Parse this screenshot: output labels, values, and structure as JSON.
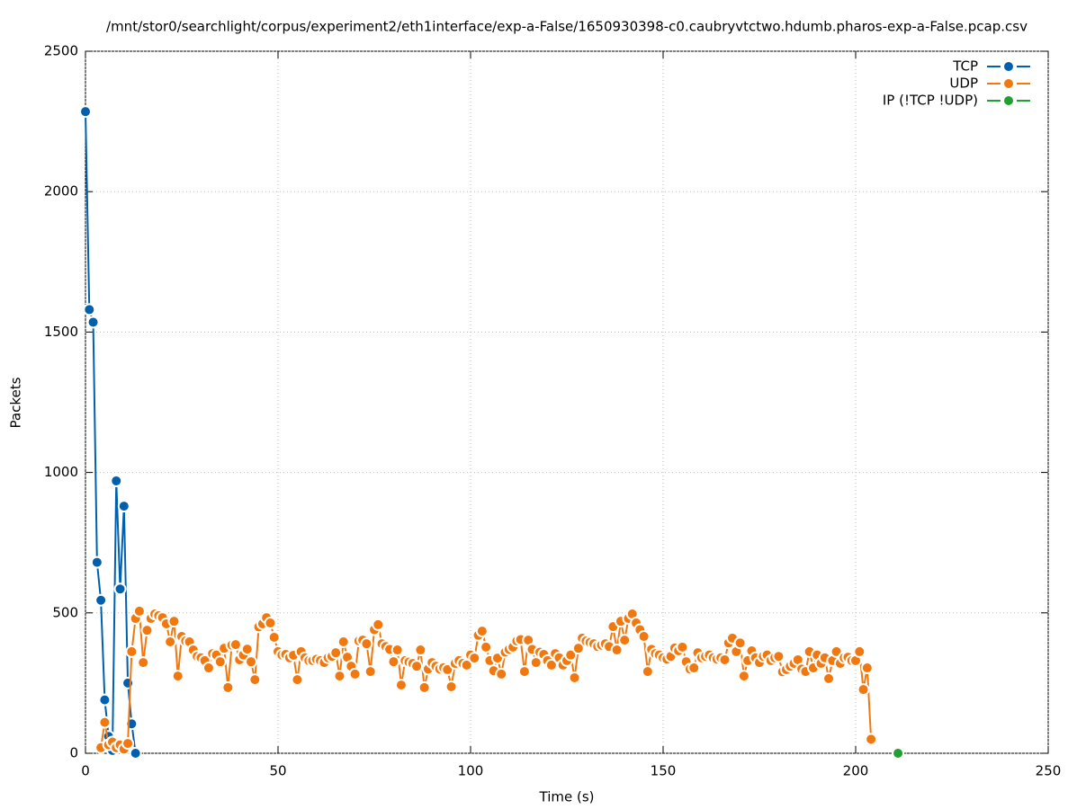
{
  "chart_data": {
    "type": "line",
    "title": "/mnt/stor0/searchlight/corpus/experiment2/eth1interface/exp-a-False/1650930398-c0.caubryvtctwo.hdumb.pharos-exp-a-False.pcap.csv",
    "xlabel": "Time (s)",
    "ylabel": "Packets",
    "xlim": [
      0,
      250
    ],
    "xticks": [
      0,
      50,
      100,
      150,
      200,
      250
    ],
    "ylim": [
      0,
      2500
    ],
    "yticks": [
      0,
      500,
      1000,
      1500,
      2000,
      2500
    ],
    "grid": true,
    "legend": "top-right",
    "series": [
      {
        "name": "TCP",
        "color": "#0060ad",
        "x": [
          0,
          1,
          2,
          3,
          4,
          5,
          6,
          7,
          8,
          9,
          10,
          11,
          12,
          13
        ],
        "values": [
          2285,
          1580,
          1535,
          680,
          545,
          190,
          60,
          10,
          970,
          585,
          880,
          250,
          105,
          0
        ]
      },
      {
        "name": "UDP",
        "color": "#f0780f",
        "x": [
          4,
          5,
          6,
          7,
          8,
          9,
          10,
          11,
          12,
          13,
          14,
          15,
          16,
          17,
          18,
          19,
          20,
          21,
          22,
          23,
          24,
          25,
          26,
          27,
          28,
          29,
          30,
          31,
          32,
          33,
          34,
          35,
          36,
          37,
          38,
          39,
          40,
          41,
          42,
          43,
          44,
          45,
          46,
          47,
          48,
          49,
          50,
          51,
          52,
          53,
          54,
          55,
          56,
          57,
          58,
          59,
          60,
          61,
          62,
          63,
          64,
          65,
          66,
          67,
          68,
          69,
          70,
          71,
          72,
          73,
          74,
          75,
          76,
          77,
          78,
          79,
          80,
          81,
          82,
          83,
          84,
          85,
          86,
          87,
          88,
          89,
          90,
          91,
          92,
          93,
          94,
          95,
          96,
          97,
          98,
          99,
          100,
          101,
          102,
          103,
          104,
          105,
          106,
          107,
          108,
          109,
          110,
          111,
          112,
          113,
          114,
          115,
          116,
          117,
          118,
          119,
          120,
          121,
          122,
          123,
          124,
          125,
          126,
          127,
          128,
          129,
          130,
          131,
          132,
          133,
          134,
          135,
          136,
          137,
          138,
          139,
          140,
          141,
          142,
          143,
          144,
          145,
          146,
          147,
          148,
          149,
          150,
          151,
          152,
          153,
          154,
          155,
          156,
          157,
          158,
          159,
          160,
          161,
          162,
          163,
          164,
          165,
          166,
          167,
          168,
          169,
          170,
          171,
          172,
          173,
          174,
          175,
          176,
          177,
          178,
          179,
          180,
          181,
          182,
          183,
          184,
          185,
          186,
          187,
          188,
          189,
          190,
          191,
          192,
          193,
          194,
          195,
          196,
          197,
          198,
          199,
          200,
          201,
          202,
          203,
          204
        ],
        "values": [
          20,
          110,
          30,
          40,
          20,
          30,
          15,
          35,
          362,
          480,
          506,
          323,
          438,
          480,
          496,
          490,
          483,
          461,
          397,
          470,
          275,
          416,
          400,
          397,
          368,
          345,
          340,
          330,
          304,
          355,
          350,
          326,
          374,
          234,
          385,
          387,
          333,
          350,
          371,
          326,
          262,
          450,
          461,
          483,
          464,
          413,
          362,
          350,
          352,
          340,
          349,
          262,
          362,
          340,
          330,
          330,
          335,
          330,
          323,
          340,
          345,
          358,
          275,
          397,
          342,
          310,
          282,
          400,
          403,
          390,
          291,
          440,
          458,
          390,
          380,
          370,
          326,
          368,
          243,
          330,
          325,
          320,
          310,
          368,
          234,
          300,
          323,
          310,
          300,
          305,
          298,
          237,
          320,
          330,
          320,
          314,
          350,
          339,
          420,
          435,
          378,
          330,
          294,
          339,
          282,
          360,
          370,
          378,
          400,
          405,
          291,
          403,
          370,
          323,
          360,
          352,
          330,
          314,
          355,
          340,
          314,
          330,
          350,
          269,
          374,
          410,
          400,
          395,
          390,
          380,
          385,
          390,
          380,
          451,
          368,
          470,
          403,
          480,
          496,
          464,
          440,
          416,
          291,
          370,
          355,
          350,
          340,
          335,
          345,
          375,
          365,
          378,
          326,
          300,
          304,
          358,
          340,
          345,
          350,
          340,
          335,
          340,
          333,
          393,
          410,
          362,
          393,
          275,
          330,
          365,
          340,
          323,
          345,
          350,
          330,
          340,
          345,
          290,
          298,
          310,
          320,
          333,
          300,
          291,
          362,
          304,
          350,
          320,
          340,
          266,
          330,
          362,
          320,
          340,
          342,
          330,
          330,
          362,
          227,
          304,
          50
        ]
      },
      {
        "name": "IP (!TCP  !UDP)",
        "color": "#20a030",
        "x": [
          211
        ],
        "values": [
          0
        ]
      }
    ]
  }
}
